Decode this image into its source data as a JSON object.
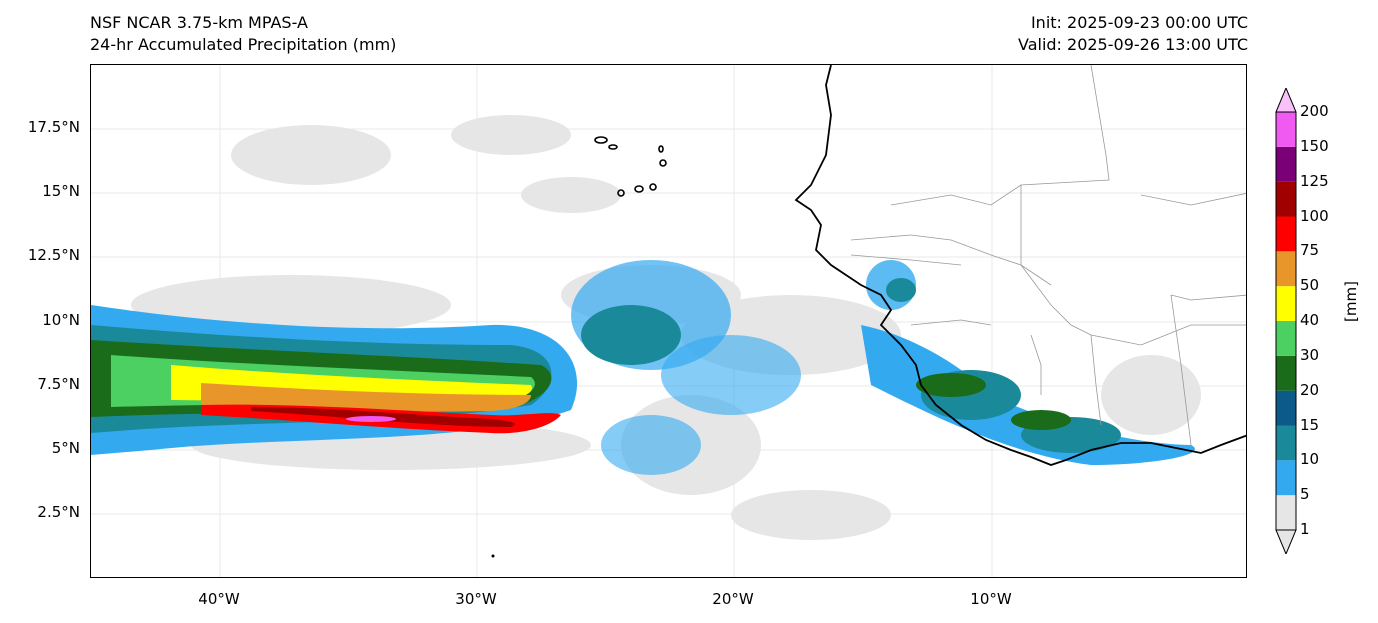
{
  "header": {
    "model": "NSF NCAR 3.75-km MPAS-A",
    "field": "24-hr Accumulated Precipitation (mm)",
    "init": "Init: 2025-09-23 00:00 UTC",
    "valid": "Valid: 2025-09-26 13:00 UTC"
  },
  "axes": {
    "lat_labels": [
      "17.5°N",
      "15°N",
      "12.5°N",
      "10°N",
      "7.5°N",
      "5°N",
      "2.5°N"
    ],
    "lon_labels": [
      "40°W",
      "30°W",
      "20°W",
      "10°W"
    ],
    "lat_values": [
      17.5,
      15,
      12.5,
      10,
      7.5,
      5,
      2.5
    ],
    "lon_values": [
      -40,
      -30,
      -20,
      -10
    ],
    "lat_range": [
      0,
      20
    ],
    "lon_range": [
      -45,
      0
    ]
  },
  "colorbar": {
    "unit_label": "[mm]",
    "levels": [
      "1",
      "5",
      "10",
      "15",
      "20",
      "30",
      "40",
      "50",
      "75",
      "100",
      "125",
      "150",
      "200"
    ],
    "colors": [
      "#e6e6e6",
      "#33aaf0",
      "#1a8a9a",
      "#0b5a8a",
      "#1a6b1a",
      "#4cd062",
      "#ffff00",
      "#e8962a",
      "#ff0000",
      "#a00000",
      "#7a0078",
      "#f05af0"
    ]
  },
  "map_info": {
    "features": [
      "coastline-africa",
      "country-borders",
      "cape-verde-islands"
    ],
    "main_rain_band": "ITCZ band 5–10°N from 45°W to 27°W with heavy core near 6–7°N"
  }
}
